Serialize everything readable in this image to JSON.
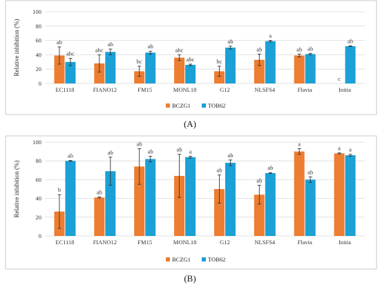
{
  "colors": {
    "BCZG1": "#ed7d31",
    "TOB62": "#1ba1d6",
    "error": "#333333"
  },
  "captions": {
    "a": "(A)",
    "b": "(B)"
  },
  "chart_data": [
    {
      "type": "bar",
      "panel": "A",
      "title": "",
      "xlabel": "",
      "ylabel": "Relative inhibition (%)",
      "ylim": [
        0,
        100
      ],
      "yticks": [
        0,
        20,
        40,
        60,
        80,
        100
      ],
      "grid": true,
      "legend": "bottom-center",
      "categories": [
        "EC1118",
        "FIANO12",
        "FM15",
        "MONL18",
        "G12",
        "NLSFS4",
        "Flavia",
        "Initia"
      ],
      "series": [
        {
          "name": "BCZG1",
          "values": [
            39,
            28,
            17,
            36,
            17,
            33,
            39,
            0
          ],
          "errors": [
            12,
            12,
            7,
            4,
            7,
            8,
            2,
            0
          ],
          "letters": [
            "ab",
            "abc",
            "bc",
            "abc",
            "bc",
            "ab",
            "ab",
            "c"
          ]
        },
        {
          "name": "TOB62",
          "values": [
            30,
            44,
            43,
            26,
            50,
            59,
            41,
            52
          ],
          "errors": [
            5,
            4,
            2,
            1,
            2,
            1,
            1,
            0.5
          ],
          "letters": [
            "abc",
            "ab",
            "ab",
            "abc",
            "ab",
            "a",
            "ab",
            "ab"
          ]
        }
      ]
    },
    {
      "type": "bar",
      "panel": "B",
      "title": "",
      "xlabel": "",
      "ylabel": "Relative inhibition (%)",
      "ylim": [
        0,
        100
      ],
      "yticks": [
        0,
        20,
        40,
        60,
        80,
        100
      ],
      "grid": true,
      "legend": "bottom-center",
      "categories": [
        "EC1118",
        "FIANO12",
        "FM15",
        "MONL18",
        "G12",
        "NLSFS4",
        "Flavia",
        "Initia"
      ],
      "series": [
        {
          "name": "BCZG1",
          "values": [
            26,
            41,
            74,
            64,
            50,
            44,
            90,
            88
          ],
          "errors": [
            18,
            0.5,
            19,
            23,
            15,
            10,
            3,
            0.5
          ],
          "letters": [
            "b",
            "ab",
            "ab",
            "ab",
            "ab",
            "ab",
            "a",
            "a"
          ]
        },
        {
          "name": "TOB62",
          "values": [
            80,
            69,
            82,
            84,
            78,
            67,
            60,
            86
          ],
          "errors": [
            0.5,
            15,
            3,
            1,
            3,
            0.5,
            3,
            1
          ],
          "letters": [
            "ab",
            "ab",
            "ab",
            "a",
            "ab",
            "ab",
            "ab",
            "a"
          ]
        }
      ]
    }
  ]
}
